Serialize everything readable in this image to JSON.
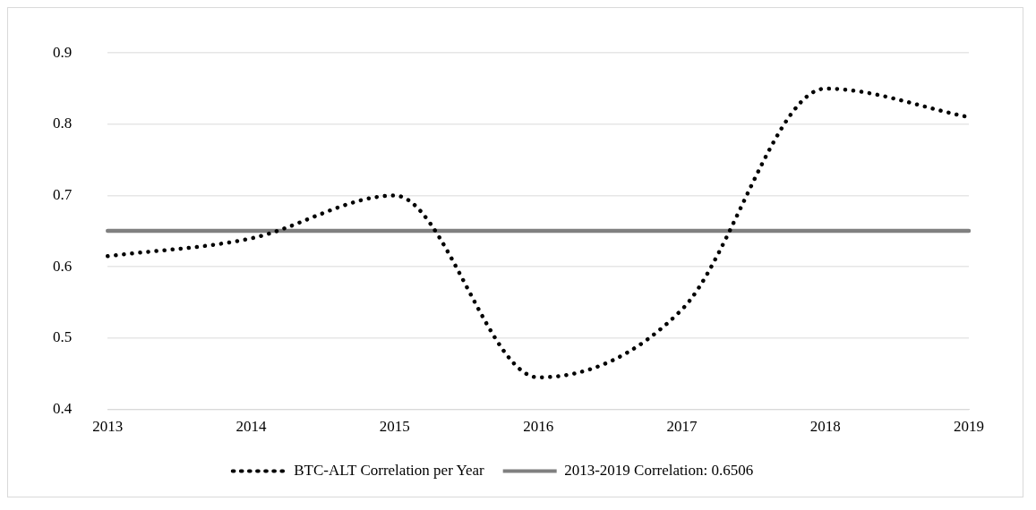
{
  "chart_data": {
    "type": "line",
    "categories": [
      "2013",
      "2014",
      "2015",
      "2016",
      "2017",
      "2018",
      "2019"
    ],
    "series": [
      {
        "name": "BTC-ALT Correlation per Year",
        "color": "#000000",
        "line_style": "dotted",
        "values": [
          0.615,
          0.64,
          0.7,
          0.445,
          0.54,
          0.85,
          0.81
        ]
      },
      {
        "name": "2013-2019 Correlation: 0.6506",
        "color": "#808080",
        "line_style": "solid",
        "values": [
          0.6506,
          0.6506,
          0.6506,
          0.6506,
          0.6506,
          0.6506,
          0.6506
        ]
      }
    ],
    "ylim": [
      0.4,
      0.9
    ],
    "yticks": [
      0.4,
      0.5,
      0.6,
      0.7,
      0.8,
      0.9
    ],
    "grid": "y",
    "legend": "bottom",
    "marker": "none"
  }
}
